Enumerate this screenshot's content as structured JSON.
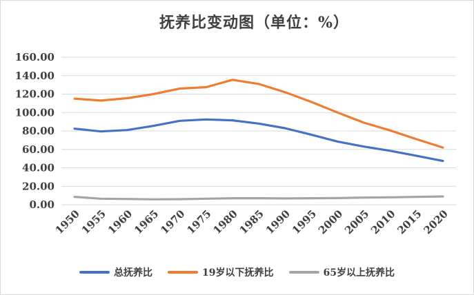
{
  "chart_data": {
    "type": "line",
    "title": "抚养比变动图（单位：%）",
    "x": [
      "1950",
      "1955",
      "1960",
      "1965",
      "1970",
      "1975",
      "1980",
      "1985",
      "1990",
      "1995",
      "2000",
      "2005",
      "2010",
      "2015",
      "2020"
    ],
    "ylim": [
      0,
      160
    ],
    "y_ticks": [
      "0.00",
      "20.00",
      "40.00",
      "60.00",
      "80.00",
      "100.00",
      "120.00",
      "140.00",
      "160.00"
    ],
    "grid": true,
    "legend_position": "bottom",
    "series": [
      {
        "name": "总抚养比",
        "color": "#4472C4",
        "values": [
          82.5,
          79.5,
          81.0,
          85.5,
          91.0,
          92.5,
          91.5,
          88.0,
          83.0,
          76.0,
          68.5,
          63.0,
          58.5,
          53.0,
          47.5
        ]
      },
      {
        "name": "19岁以下抚养比",
        "color": "#ED7D31",
        "values": [
          115.0,
          113.0,
          115.5,
          120.0,
          126.0,
          127.5,
          135.5,
          131.0,
          122.0,
          111.5,
          100.0,
          89.0,
          80.5,
          71.0,
          62.0
        ]
      },
      {
        "name": "65岁以上抚养比",
        "color": "#A5A5A5",
        "values": [
          8.5,
          6.5,
          6.2,
          5.8,
          6.0,
          6.5,
          7.0,
          7.0,
          6.8,
          7.0,
          7.2,
          7.8,
          8.0,
          8.5,
          9.0
        ]
      }
    ]
  }
}
